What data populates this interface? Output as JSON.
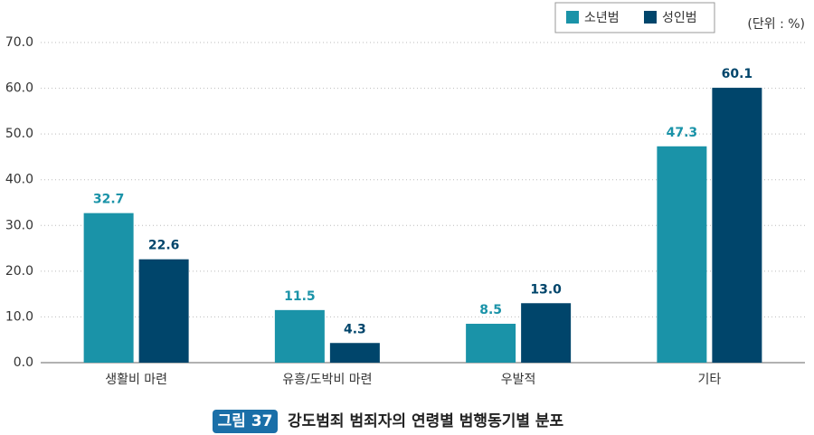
{
  "chart_data": {
    "type": "bar",
    "unit_note": "(단위 : %)",
    "caption_label": "그림 37",
    "caption": "강도범죄 범죄자의 연령별 범행동기별 분포",
    "categories": [
      "생활비 마련",
      "유흥/도박비 마련",
      "우발적",
      "기타"
    ],
    "series": [
      {
        "name": "소년범",
        "color": "#1a93a8",
        "values": [
          32.7,
          11.5,
          8.5,
          47.3
        ],
        "value_labels": [
          "32.7",
          "11.5",
          "8.5",
          "47.3"
        ]
      },
      {
        "name": "성인범",
        "color": "#00456b",
        "values": [
          22.6,
          4.3,
          13.0,
          60.1
        ],
        "value_labels": [
          "22.6",
          "4.3",
          "13.0",
          "60.1"
        ]
      }
    ],
    "ylim": [
      0,
      70
    ],
    "yticks": [
      {
        "value": 0,
        "label": "0.0"
      },
      {
        "value": 10,
        "label": "10.0"
      },
      {
        "value": 20,
        "label": "20.0"
      },
      {
        "value": 30,
        "label": "30.0"
      },
      {
        "value": 40,
        "label": "40.0"
      },
      {
        "value": 50,
        "label": "50.0"
      },
      {
        "value": 60,
        "label": "60.0"
      },
      {
        "value": 70,
        "label": "70.0"
      }
    ],
    "grid": true
  }
}
